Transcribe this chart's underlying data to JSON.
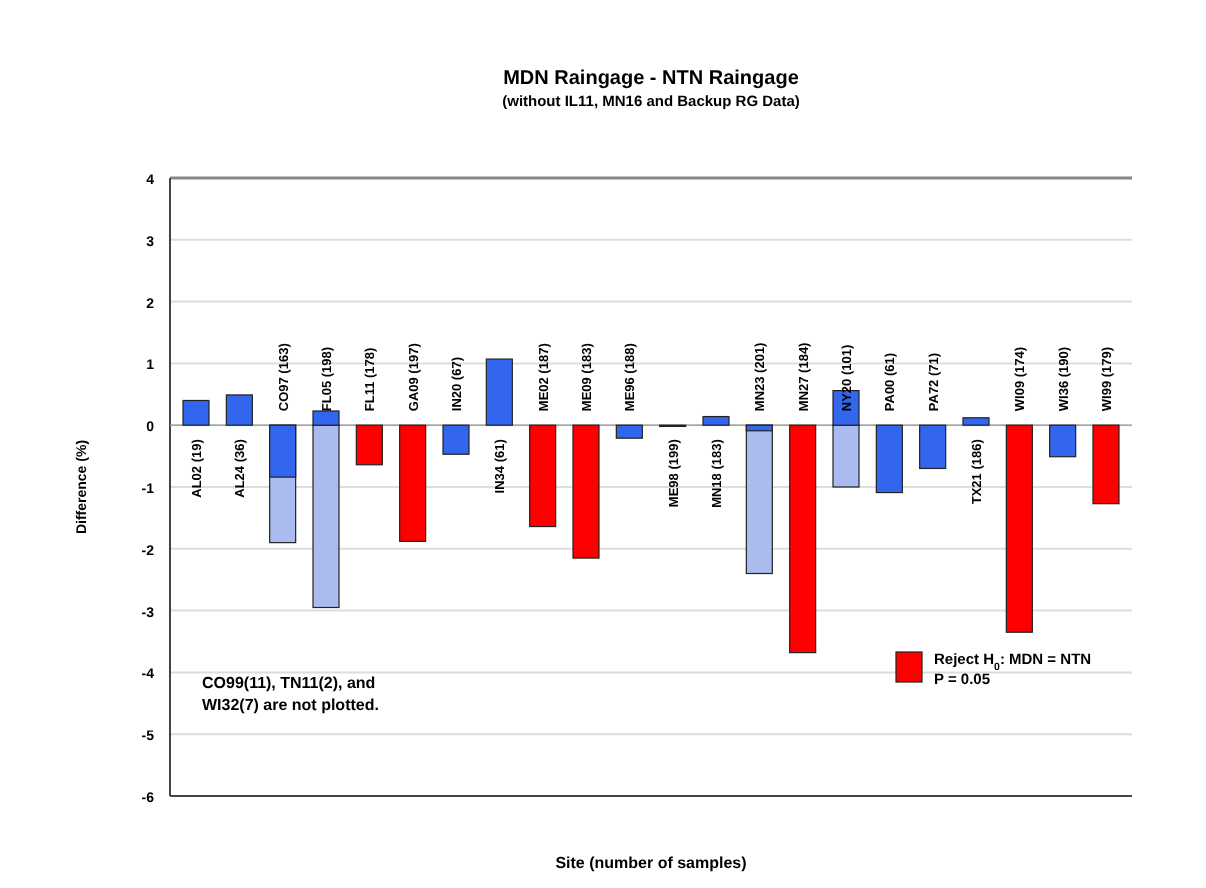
{
  "chart_data": {
    "type": "bar",
    "title": "MDN Raingage - NTN Raingage",
    "subtitle": "(without IL11, MN16 and Backup RG Data)",
    "xlabel": "Site (number of samples)",
    "ylabel": "Difference (%)",
    "categories": [
      "AL02 (19)",
      "AL24 (36)",
      "CO97 (163)",
      "FL05 (198)",
      "FL11 (178)",
      "GA09 (197)",
      "IN20 (67)",
      "IN34 (61)",
      "ME02 (187)",
      "ME09 (183)",
      "ME96 (188)",
      "ME98 (199)",
      "MN18 (183)",
      "MN23 (201)",
      "MN27 (184)",
      "NY20 (101)",
      "PA00 (61)",
      "PA72 (71)",
      "TX21 (186)",
      "WI09 (174)",
      "WI36 (190)",
      "WI99 (179)"
    ],
    "series": [
      {
        "color": "#aabbee",
        "values": [
          null,
          null,
          -1.9,
          -2.95,
          null,
          null,
          null,
          null,
          null,
          null,
          null,
          null,
          null,
          -2.4,
          null,
          -1.0,
          null,
          null,
          null,
          null,
          null,
          null
        ]
      },
      {
        "color": "#3366ee",
        "values": [
          0.4,
          0.49,
          -0.84,
          0.23,
          null,
          null,
          -0.47,
          1.07,
          null,
          null,
          -0.21,
          -0.02,
          0.14,
          -0.09,
          null,
          0.56,
          -1.09,
          -0.7,
          0.12,
          null,
          -0.51,
          null
        ]
      },
      {
        "name": "Reject H$_{0}$: MDN = NTN\nP = 0.05",
        "color": "#ff0000",
        "values": [
          null,
          null,
          null,
          null,
          -0.64,
          -1.88,
          null,
          null,
          -1.64,
          -2.15,
          null,
          null,
          null,
          null,
          -3.68,
          null,
          null,
          null,
          null,
          -3.35,
          null,
          -1.27
        ]
      }
    ],
    "ylim": [
      -6,
      4
    ],
    "yticks": [
      -6,
      -5,
      -4,
      -3,
      -2,
      -1,
      0,
      1,
      2,
      3,
      4
    ],
    "grid": "y",
    "legend": "bottom right",
    "annotations": [
      "CO99(11), TN11(2), and\nWI32(7) are not plotted."
    ]
  }
}
